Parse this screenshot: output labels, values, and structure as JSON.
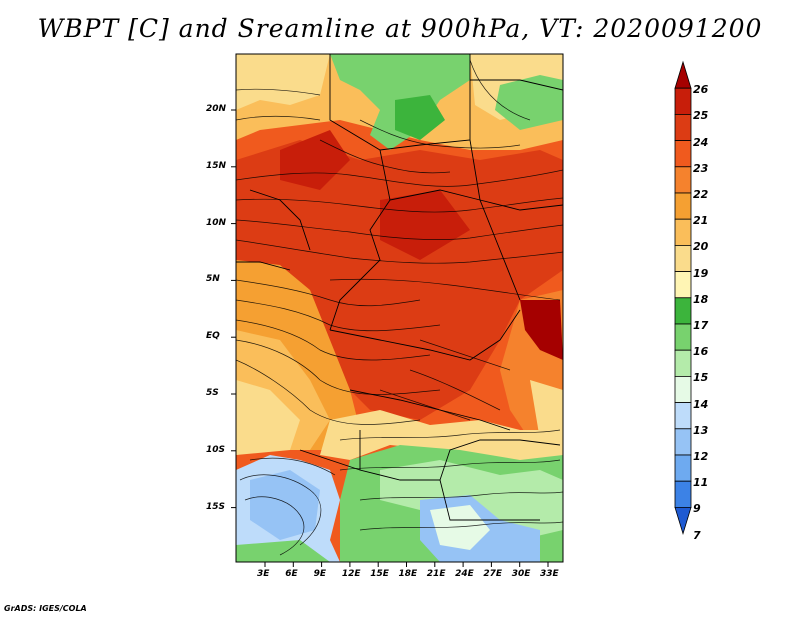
{
  "title": "WBPT [C] and Sreamline at 900hPa, VT: 2020091200",
  "credit": "GrADS: IGES/COLA",
  "map": {
    "lon_labels": [
      "3E",
      "6E",
      "9E",
      "12E",
      "15E",
      "18E",
      "21E",
      "24E",
      "27E",
      "30E",
      "33E"
    ],
    "lat_labels": [
      "20N",
      "15N",
      "10N",
      "5N",
      "EQ",
      "5S",
      "10S",
      "15S"
    ],
    "lon_range": [
      0,
      35
    ],
    "lat_range": [
      -20,
      25
    ]
  },
  "colorbar": {
    "labels": [
      "26",
      "25",
      "24",
      "23",
      "22",
      "21",
      "20",
      "19",
      "18",
      "17",
      "16",
      "15",
      "14",
      "13",
      "12",
      "11",
      "9",
      "7"
    ],
    "colors": [
      "#a50000",
      "#c81e0a",
      "#dc3c14",
      "#f05a1e",
      "#f5822d",
      "#f5a032",
      "#fabe5a",
      "#fadc8c",
      "#fff5b4",
      "#3cb43c",
      "#78d26e",
      "#b4ebaa",
      "#e6fae6",
      "#bedcfa",
      "#96c3f5",
      "#6eaaf0",
      "#3c82e6",
      "#1e5ad2"
    ]
  }
}
